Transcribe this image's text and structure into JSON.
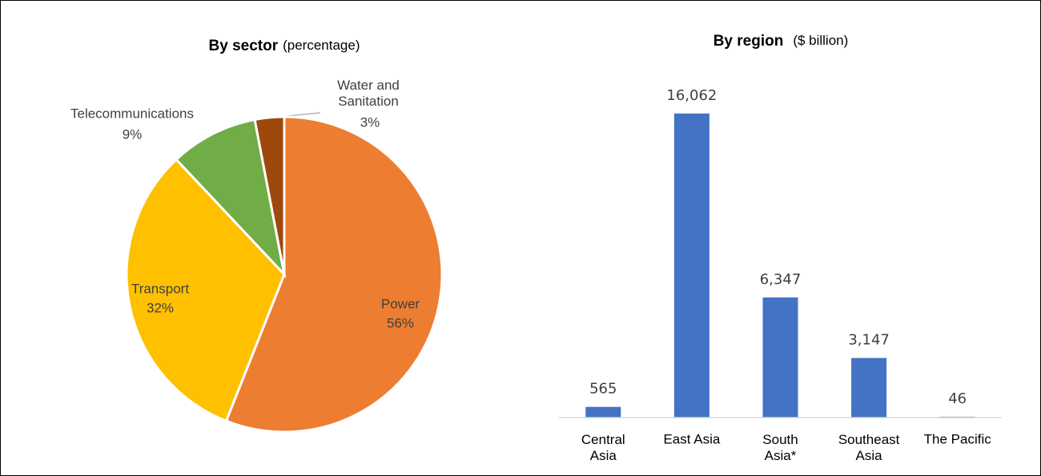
{
  "chart_data": [
    {
      "type": "pie",
      "title": "By sector",
      "subtitle": "(percentage)",
      "categories": [
        "Power",
        "Transport",
        "Telecommunications",
        "Water and\nSanitation"
      ],
      "values": [
        56,
        32,
        9,
        3
      ],
      "value_labels": [
        "56%",
        "32%",
        "9%",
        "3%"
      ],
      "colors": [
        "#ed7d31",
        "#ffc000",
        "#70ad47",
        "#9e480e"
      ]
    },
    {
      "type": "bar",
      "title": "By region",
      "subtitle": "($ billion)",
      "categories": [
        "Central\nAsia",
        "East Asia",
        "South\nAsia*",
        "Southeast\nAsia",
        "The Pacific"
      ],
      "values": [
        565,
        16062,
        6347,
        3147,
        46
      ],
      "value_labels": [
        "565",
        "16,062",
        "6,347",
        "3,147",
        "46"
      ],
      "color": "#4472c4",
      "ylim": [
        0,
        18000
      ]
    }
  ]
}
